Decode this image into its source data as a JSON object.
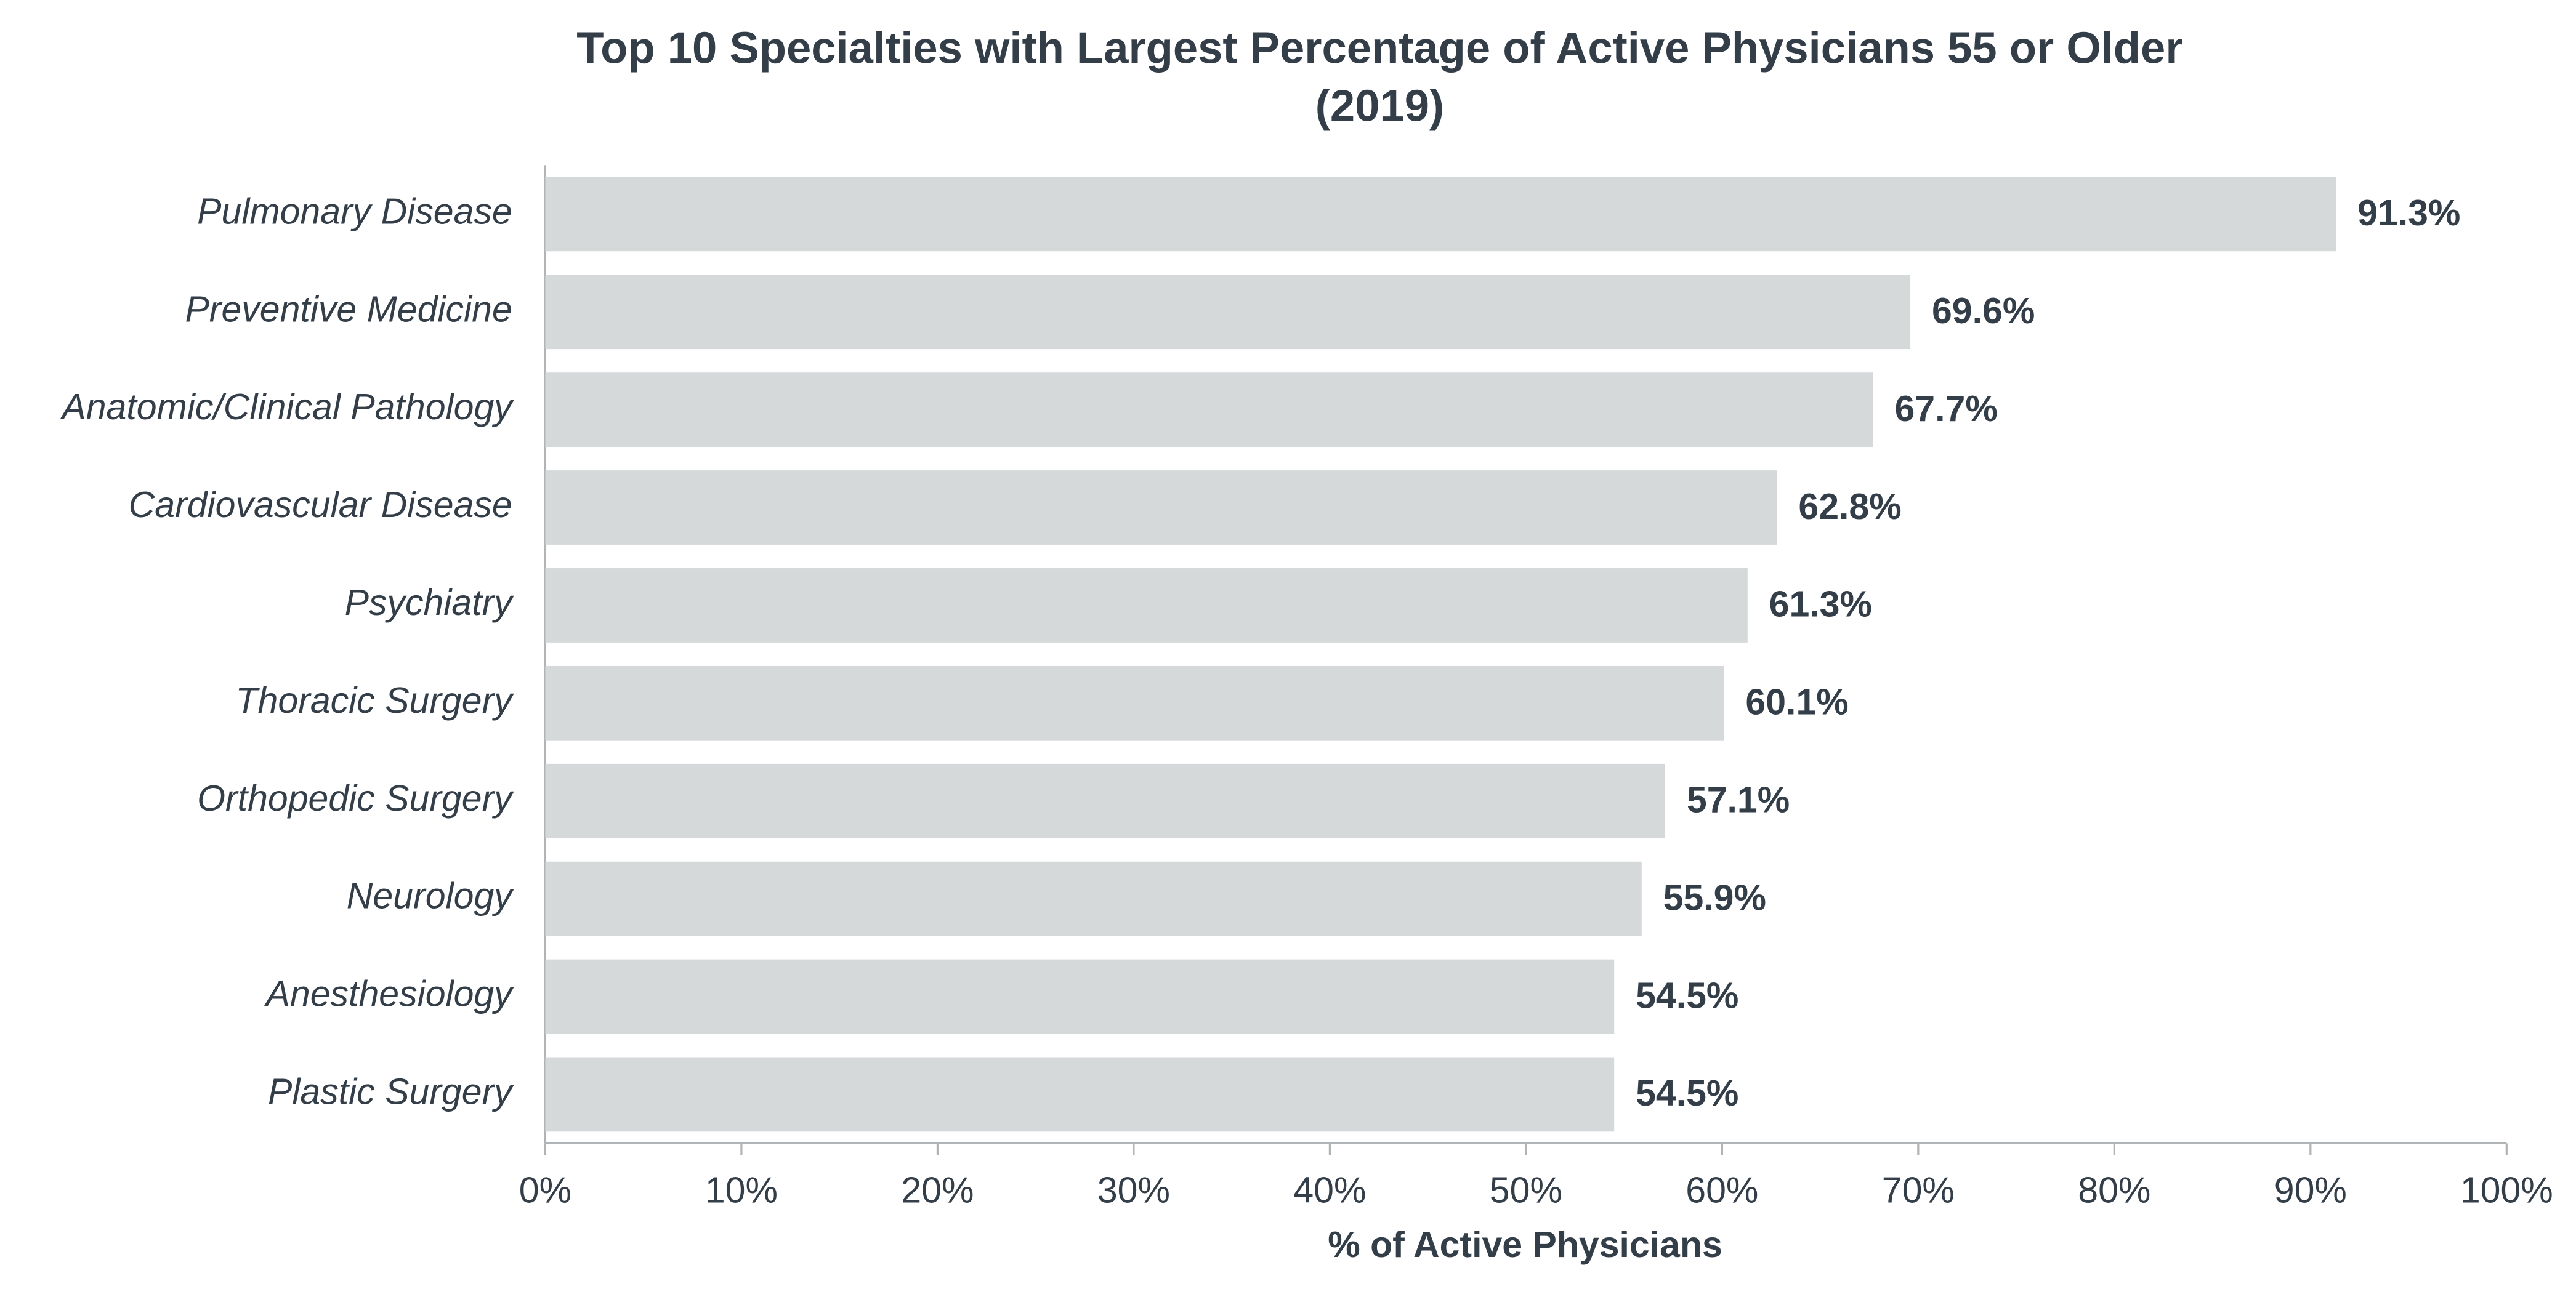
{
  "chart_data": {
    "type": "barh",
    "title": [
      "Top 10 Specialties with Largest Percentage of Active Physicians 55 or Older",
      "(2019)"
    ],
    "categories": [
      "Pulmonary Disease",
      "Preventive Medicine",
      "Anatomic/Clinical Pathology",
      "Cardiovascular Disease",
      "Psychiatry",
      "Thoracic Surgery",
      "Orthopedic Surgery",
      "Neurology",
      "Anesthesiology",
      "Plastic Surgery"
    ],
    "values": [
      91.3,
      69.6,
      67.7,
      62.8,
      61.3,
      60.1,
      57.1,
      55.9,
      54.5,
      54.5
    ],
    "value_labels": [
      "91.3%",
      "69.6%",
      "67.7%",
      "62.8%",
      "61.3%",
      "60.1%",
      "57.1%",
      "55.9%",
      "54.5%",
      "54.5%"
    ],
    "color": "#d5d9da",
    "xlabel": "% of Active Physicians",
    "xlim": [
      0,
      100
    ],
    "xticks": [
      {
        "value": 0,
        "label": "0%"
      },
      {
        "value": 10,
        "label": "10%"
      },
      {
        "value": 20,
        "label": "20%"
      },
      {
        "value": 30,
        "label": "30%"
      },
      {
        "value": 40,
        "label": "40%"
      },
      {
        "value": 50,
        "label": "50%"
      },
      {
        "value": 60,
        "label": "60%"
      },
      {
        "value": 70,
        "label": "70%"
      },
      {
        "value": 80,
        "label": "80%"
      },
      {
        "value": 90,
        "label": "90%"
      },
      {
        "value": 100,
        "label": "100%"
      }
    ],
    "grid": false
  }
}
